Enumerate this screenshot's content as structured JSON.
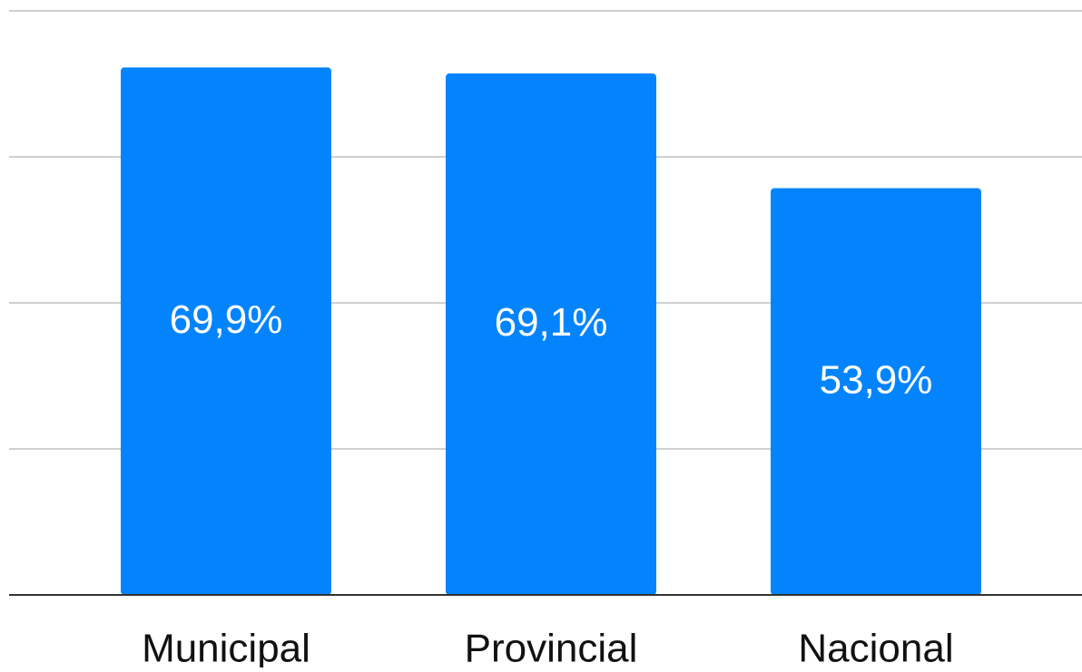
{
  "chart_data": {
    "type": "bar",
    "categories": [
      "Municipal",
      "Provincial",
      "Nacional"
    ],
    "values": [
      69.9,
      69.1,
      53.9
    ],
    "value_labels": [
      "69,9%",
      "69,1%",
      "53,9%"
    ],
    "color": "#0384fc",
    "ylim": [
      0,
      77.4
    ],
    "yticks": [
      0,
      19.35,
      38.7,
      58.05,
      77.4
    ],
    "grid": true
  }
}
